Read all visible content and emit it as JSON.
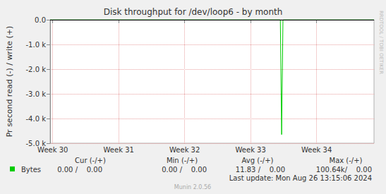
{
  "chart_data": {
    "type": "line",
    "title": "Disk throughput for /dev/loop6 - by month",
    "y_label": "Pr second read (-) / write (+)",
    "x": [
      29.96,
      33.45,
      33.47,
      33.49,
      34.87
    ],
    "series": [
      {
        "name": "Bytes",
        "color": "#00cc00",
        "values": [
          0,
          0,
          -4650,
          0,
          0
        ]
      }
    ],
    "xlim": [
      29.96,
      34.87
    ],
    "xticks": [
      {
        "value": 30,
        "label": "Week 30"
      },
      {
        "value": 31,
        "label": "Week 31"
      },
      {
        "value": 32,
        "label": "Week 32"
      },
      {
        "value": 33,
        "label": "Week 33"
      },
      {
        "value": 34,
        "label": "Week 34"
      }
    ],
    "ylim": [
      -5000,
      0
    ],
    "yticks": [
      {
        "value": -5000,
        "label": "-5.0 k"
      },
      {
        "value": -4000,
        "label": "-4.0 k"
      },
      {
        "value": -3000,
        "label": "-3.0 k"
      },
      {
        "value": -2000,
        "label": "-2.0 k"
      },
      {
        "value": -1000,
        "label": "-1.0 k"
      },
      {
        "value": 0,
        "label": "0.0"
      }
    ],
    "grid": true,
    "stats": {
      "columns": [
        "Cur (-/+)",
        "Min (-/+)",
        "Avg (-/+)",
        "Max (-/+)"
      ],
      "rows": [
        {
          "name": "Bytes",
          "color": "#00cc00",
          "cells": [
            "0.00 /    0.00",
            "0.00 /    0.00",
            "11.83 /    0.00",
            "100.64k/    0.00"
          ]
        }
      ]
    },
    "annotations": [
      "Last update: Mon Aug 26 13:15:06 2024",
      "Munin 2.0.56",
      "RRDTOOL / TOBI OETIKER"
    ]
  }
}
